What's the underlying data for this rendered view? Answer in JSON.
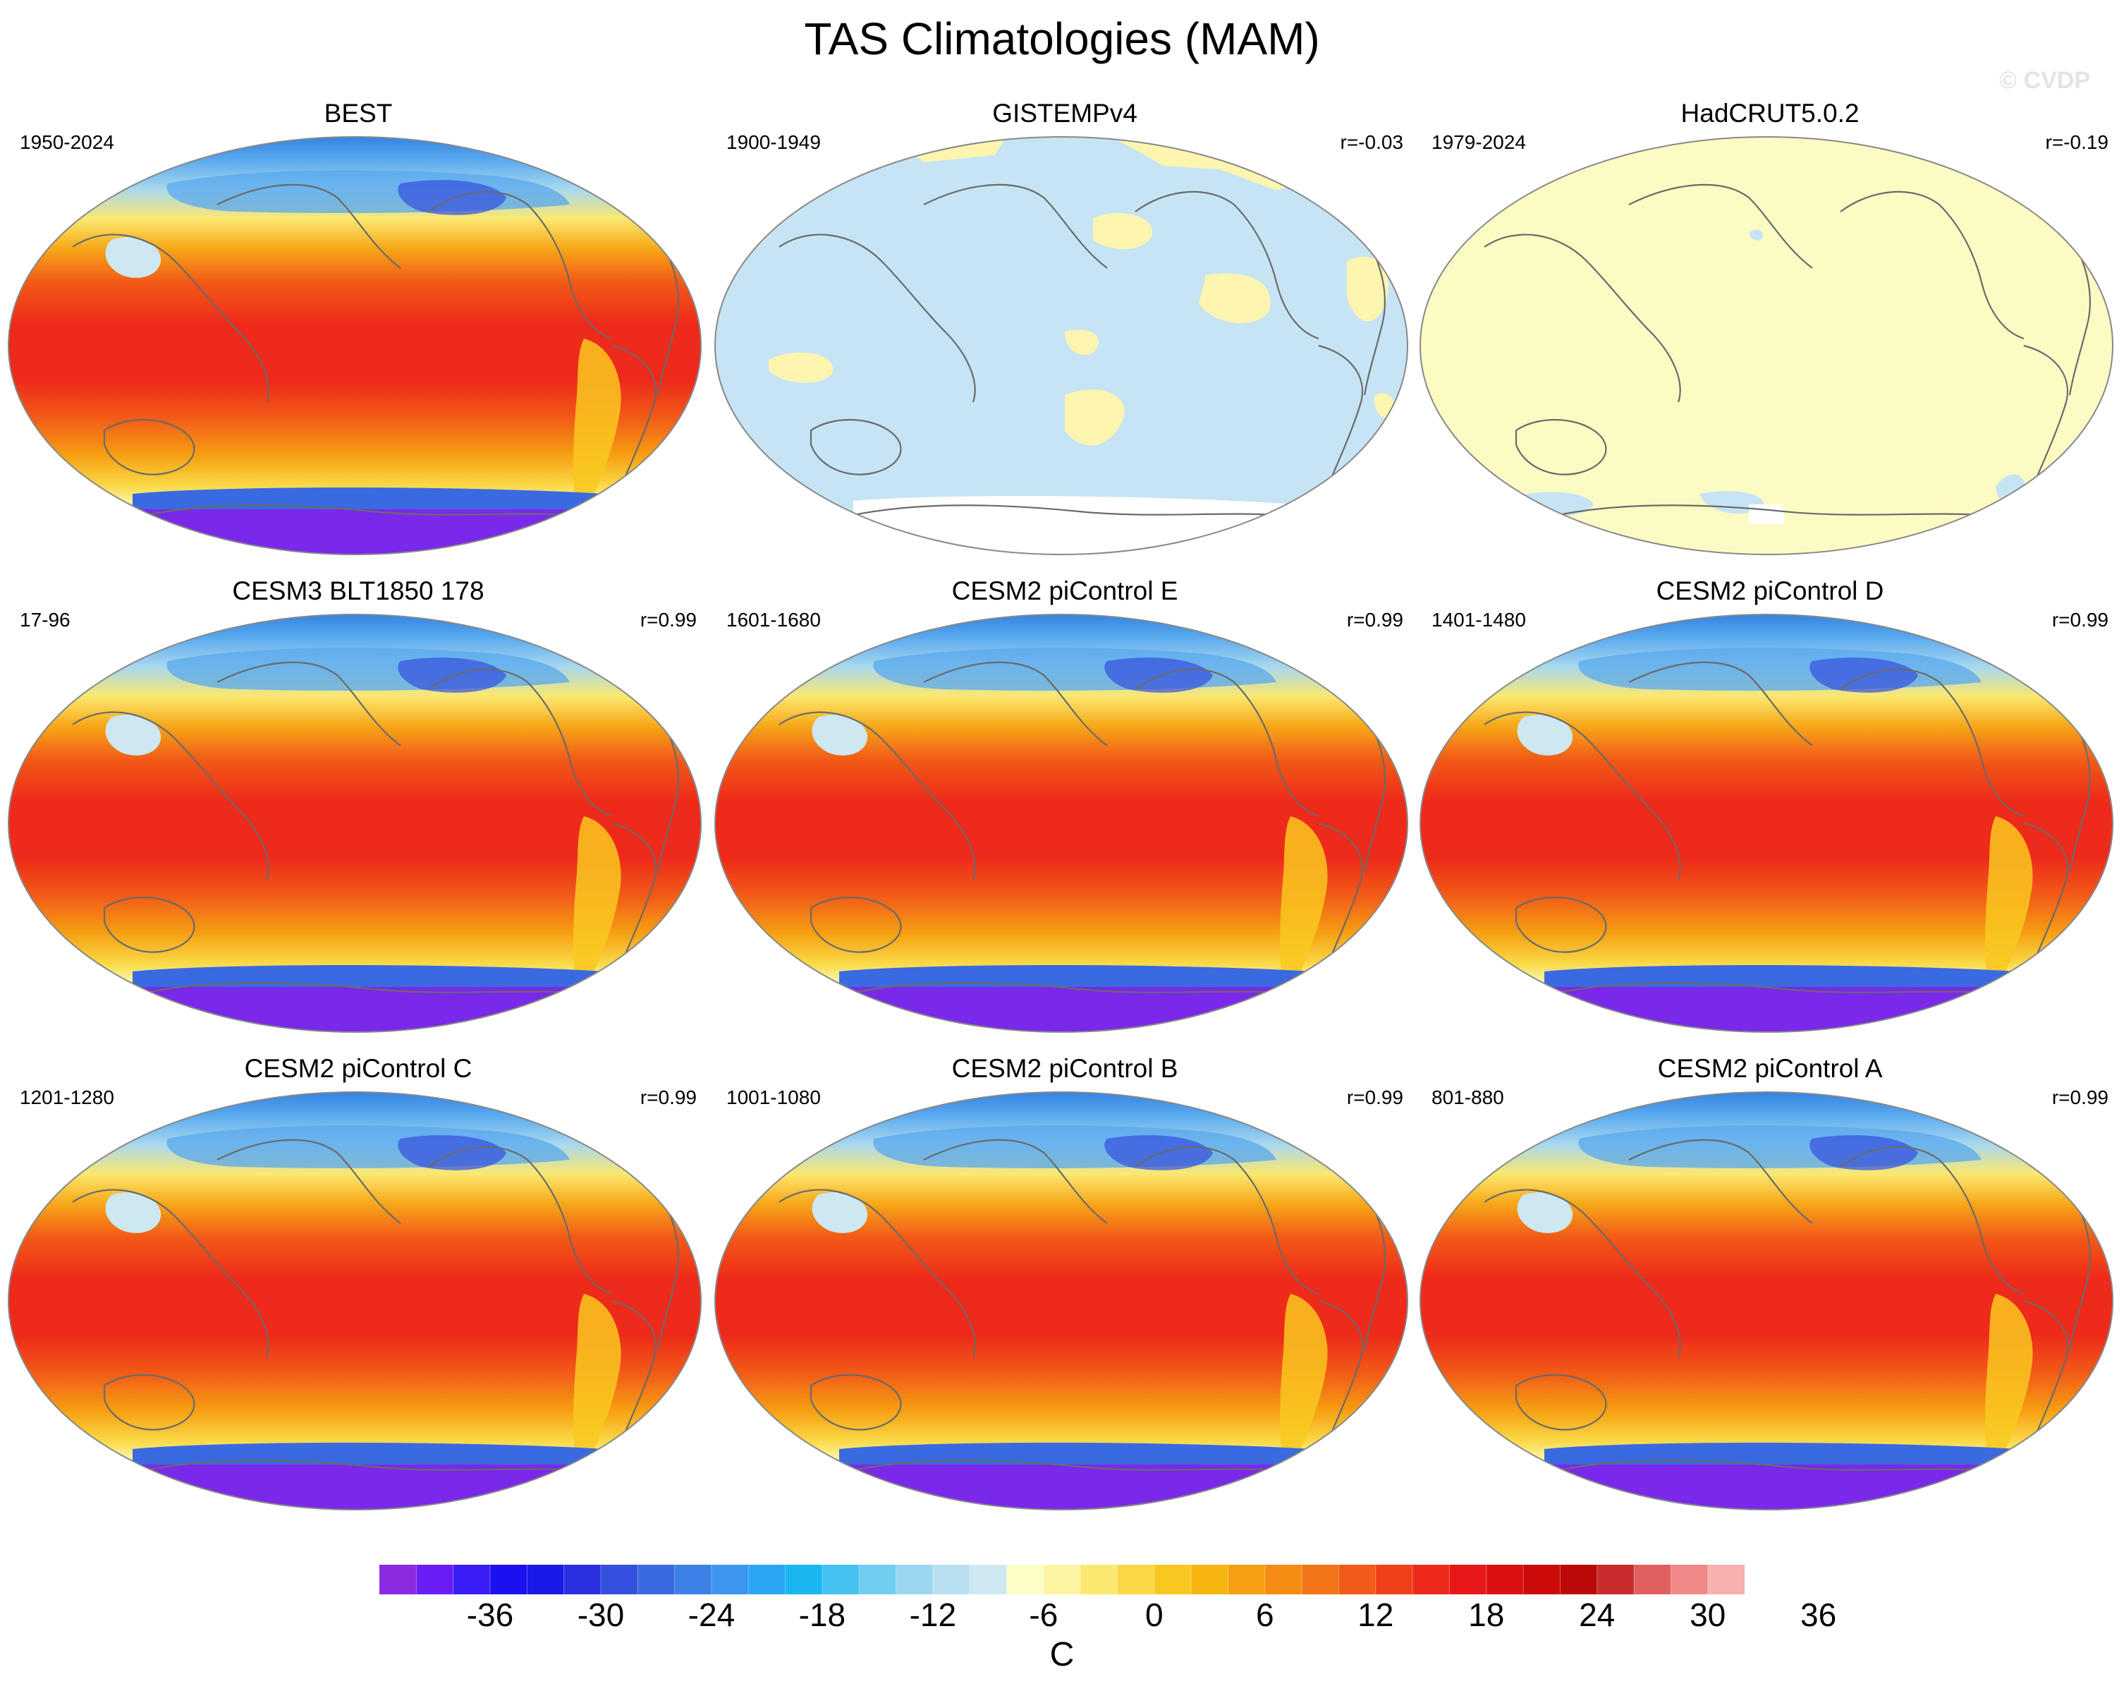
{
  "title": "TAS Climatologies (MAM)",
  "watermark": "© CVDP",
  "panels": [
    {
      "name": "BEST",
      "years": "1950-2024",
      "r": "",
      "style": "obs"
    },
    {
      "name": "GISTEMPv4",
      "years": "1900-1949",
      "r": "r=-0.03",
      "style": "gistemp"
    },
    {
      "name": "HadCRUT5.0.2",
      "years": "1979-2024",
      "r": "r=-0.19",
      "style": "hadcrut"
    },
    {
      "name": "CESM3 BLT1850 178",
      "years": "17-96",
      "r": "r=0.99",
      "style": "model"
    },
    {
      "name": "CESM2 piControl E",
      "years": "1601-1680",
      "r": "r=0.99",
      "style": "model"
    },
    {
      "name": "CESM2 piControl D",
      "years": "1401-1480",
      "r": "r=0.99",
      "style": "model"
    },
    {
      "name": "CESM2 piControl C",
      "years": "1201-1280",
      "r": "r=0.99",
      "style": "model"
    },
    {
      "name": "CESM2 piControl B",
      "years": "1001-1080",
      "r": "r=0.99",
      "style": "model"
    },
    {
      "name": "CESM2 piControl A",
      "years": "801-880",
      "r": "r=0.99",
      "style": "model"
    }
  ],
  "colorbar": {
    "units": "C",
    "tick_labels": [
      "-36",
      "-30",
      "-24",
      "-18",
      "-12",
      "-6",
      "0",
      "6",
      "12",
      "18",
      "24",
      "30",
      "36"
    ],
    "colors": [
      "#8a2be2",
      "#6a1ef5",
      "#3a1cf5",
      "#1c10f0",
      "#1a1ae8",
      "#2a30e0",
      "#3550de",
      "#3a6ae0",
      "#3c80e8",
      "#3c96f0",
      "#2aa6f5",
      "#1ab6f2",
      "#45c2f0",
      "#70cdf0",
      "#9ad6f0",
      "#b8e0f0",
      "#cde8f0",
      "#fdfdc8",
      "#fcf4a0",
      "#fbe870",
      "#fad845",
      "#f9c820",
      "#f7b510",
      "#f6a012",
      "#f48c14",
      "#f37416",
      "#f25a18",
      "#f0401a",
      "#ee2a1a",
      "#e81818",
      "#dc1010",
      "#cc0a0a",
      "#bb0808",
      "#c82c2c",
      "#e06060",
      "#f08888",
      "#f8b0b0"
    ]
  }
}
